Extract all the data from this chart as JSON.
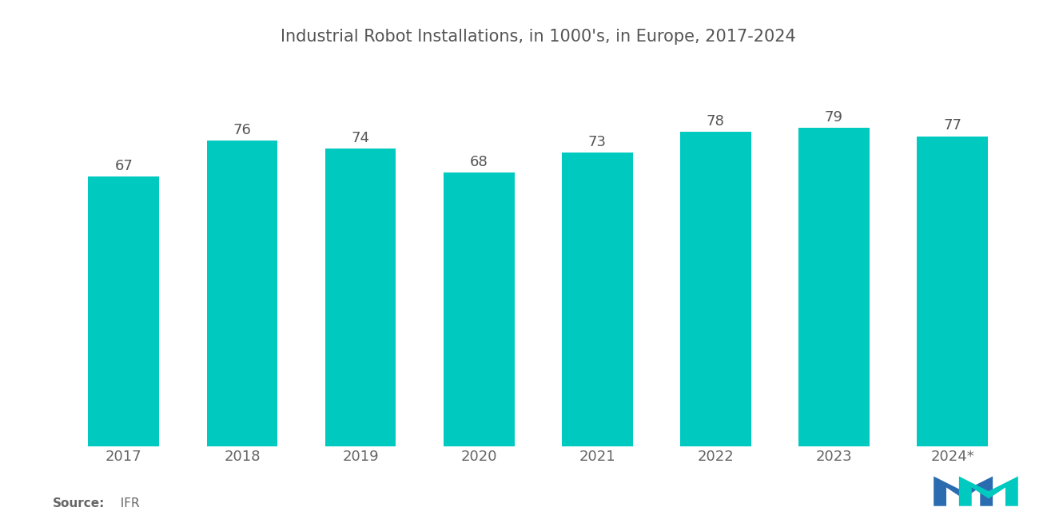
{
  "title": "Industrial Robot Installations, in 1000's, in Europe, 2017-2024",
  "categories": [
    "2017",
    "2018",
    "2019",
    "2020",
    "2021",
    "2022",
    "2023",
    "2024*"
  ],
  "values": [
    67,
    76,
    74,
    68,
    73,
    78,
    79,
    77
  ],
  "bar_color": "#00C9C0",
  "value_label_color": "#555555",
  "title_color": "#555555",
  "axis_label_color": "#666666",
  "background_color": "#ffffff",
  "title_fontsize": 15,
  "value_fontsize": 13,
  "tick_fontsize": 13,
  "source_bold": "Source:",
  "source_normal": "  IFR",
  "ylim": [
    0,
    95
  ],
  "bar_width": 0.6,
  "logo_blue": "#2B6CB0",
  "logo_teal": "#00C9C0"
}
